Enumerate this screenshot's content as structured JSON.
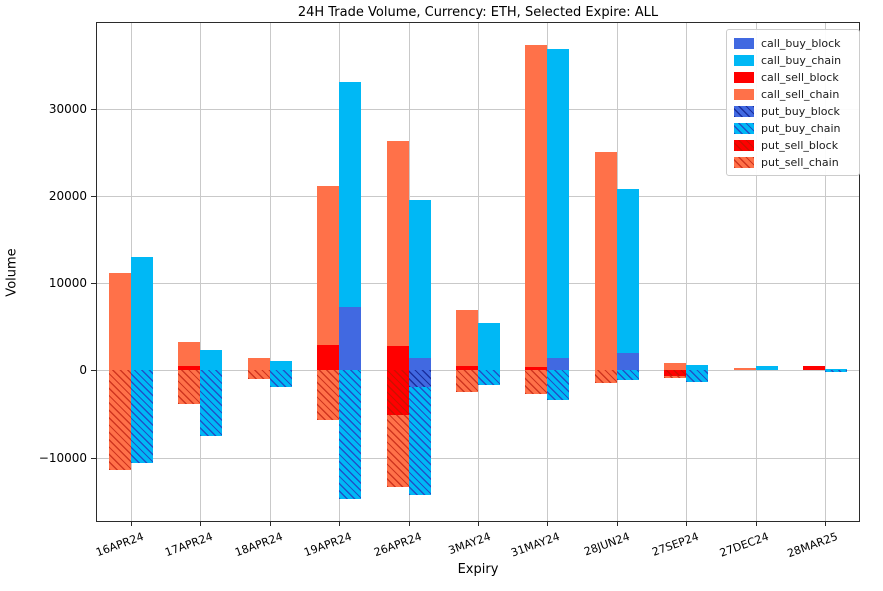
{
  "title": "24H Trade Volume, Currency: ETH, Selected Expire: ALL",
  "chart_data": {
    "type": "bar",
    "title": "24H Trade Volume, Currency: ETH, Selected Expire: ALL",
    "xlabel": "Expiry",
    "ylabel": "Volume",
    "ylim": [
      -17400,
      40000
    ],
    "yticks": [
      -10000,
      0,
      10000,
      20000,
      30000
    ],
    "ytick_labels": [
      "−10000",
      "0",
      "10000",
      "20000",
      "30000"
    ],
    "grid": true,
    "legend_position": "upper right",
    "categories": [
      "16APR24",
      "17APR24",
      "18APR24",
      "19APR24",
      "26APR24",
      "3MAY24",
      "31MAY24",
      "28JUN24",
      "27SEP24",
      "27DEC24",
      "28MAR25"
    ],
    "series": [
      {
        "name": "call_buy_block",
        "color": "#4169E1",
        "hatch": false,
        "hatch_color": null,
        "side": "buy",
        "values": [
          0,
          0,
          0,
          7300,
          1400,
          0,
          1400,
          2000,
          0,
          0,
          0
        ]
      },
      {
        "name": "call_buy_chain",
        "color": "#00B8F5",
        "hatch": false,
        "hatch_color": null,
        "side": "buy",
        "values": [
          13000,
          2300,
          1100,
          25800,
          18200,
          5400,
          35500,
          18800,
          600,
          500,
          200
        ]
      },
      {
        "name": "call_sell_block",
        "color": "#FF0000",
        "hatch": false,
        "hatch_color": null,
        "side": "sell",
        "values": [
          0,
          500,
          0,
          2900,
          2800,
          500,
          400,
          0,
          0,
          0,
          500
        ]
      },
      {
        "name": "call_sell_chain",
        "color": "#FF7149",
        "hatch": false,
        "hatch_color": null,
        "side": "sell",
        "values": [
          11200,
          2800,
          1400,
          18300,
          23500,
          6400,
          37000,
          25100,
          800,
          300,
          0
        ]
      },
      {
        "name": "put_buy_block",
        "color": "#4169E1",
        "hatch": true,
        "hatch_color": "#1A2F9E",
        "side": "buy",
        "values": [
          0,
          0,
          0,
          0,
          -1900,
          0,
          0,
          0,
          0,
          0,
          0
        ]
      },
      {
        "name": "put_buy_chain",
        "color": "#00B8F5",
        "hatch": true,
        "hatch_color": "#2050C8",
        "side": "buy",
        "values": [
          -10600,
          -7500,
          -1900,
          -14800,
          -12400,
          -1700,
          -3400,
          -1100,
          -1300,
          0,
          -200
        ]
      },
      {
        "name": "put_sell_block",
        "color": "#FF0000",
        "hatch": true,
        "hatch_color": "#CC1100",
        "side": "sell",
        "values": [
          0,
          0,
          0,
          0,
          -5100,
          0,
          0,
          0,
          -600,
          0,
          0
        ]
      },
      {
        "name": "put_sell_chain",
        "color": "#FF7149",
        "hatch": true,
        "hatch_color": "#D0351F",
        "side": "sell",
        "values": [
          -11400,
          -3900,
          -1000,
          -5700,
          -8300,
          -2500,
          -2700,
          -1400,
          -300,
          0,
          0
        ]
      }
    ]
  }
}
